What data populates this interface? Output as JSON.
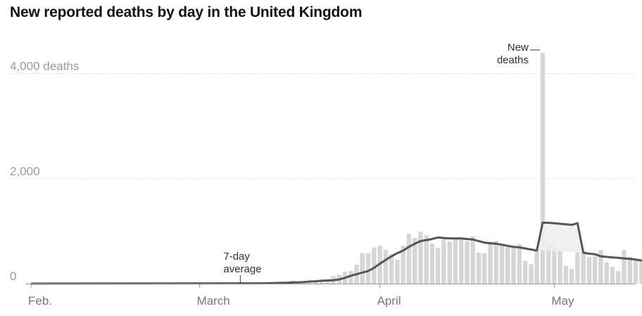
{
  "title": "New reported deaths by day in the United Kingdom",
  "chart_data": {
    "type": "bar",
    "title": "New reported deaths by day in the United Kingdom",
    "xlabel": "",
    "ylabel": "",
    "ylim": [
      0,
      4500
    ],
    "y_ticks": [
      {
        "value": 0,
        "label": "0"
      },
      {
        "value": 2000,
        "label": "2,000"
      },
      {
        "value": 4000,
        "label": "4,000 deaths"
      }
    ],
    "x_ticks": [
      {
        "date": "2020-02-01",
        "label": "Feb."
      },
      {
        "date": "2020-03-01",
        "label": "March"
      },
      {
        "date": "2020-04-01",
        "label": "April"
      },
      {
        "date": "2020-05-01",
        "label": "May"
      }
    ],
    "grid": true,
    "x_dates": [
      "2020-03-11",
      "2020-03-12",
      "2020-03-13",
      "2020-03-14",
      "2020-03-15",
      "2020-03-16",
      "2020-03-17",
      "2020-03-18",
      "2020-03-19",
      "2020-03-20",
      "2020-03-21",
      "2020-03-22",
      "2020-03-23",
      "2020-03-24",
      "2020-03-25",
      "2020-03-26",
      "2020-03-27",
      "2020-03-28",
      "2020-03-29",
      "2020-03-30",
      "2020-03-31",
      "2020-04-01",
      "2020-04-02",
      "2020-04-03",
      "2020-04-04",
      "2020-04-05",
      "2020-04-06",
      "2020-04-07",
      "2020-04-08",
      "2020-04-09",
      "2020-04-10",
      "2020-04-11",
      "2020-04-12",
      "2020-04-13",
      "2020-04-14",
      "2020-04-15",
      "2020-04-16",
      "2020-04-17",
      "2020-04-18",
      "2020-04-19",
      "2020-04-20",
      "2020-04-21",
      "2020-04-22",
      "2020-04-23",
      "2020-04-24",
      "2020-04-25",
      "2020-04-26",
      "2020-04-27",
      "2020-04-28",
      "2020-04-29",
      "2020-04-30",
      "2020-05-01",
      "2020-05-02",
      "2020-05-03",
      "2020-05-04",
      "2020-05-05",
      "2020-05-06",
      "2020-05-07",
      "2020-05-08",
      "2020-05-09",
      "2020-05-10",
      "2020-05-11",
      "2020-05-12",
      "2020-05-13",
      "2020-05-14",
      "2020-05-15",
      "2020-05-16",
      "2020-05-17"
    ],
    "series": [
      {
        "name": "New deaths",
        "values": [
          2,
          2,
          10,
          14,
          20,
          20,
          60,
          40,
          30,
          50,
          60,
          50,
          80,
          150,
          170,
          230,
          240,
          360,
          580,
          580,
          690,
          720,
          640,
          560,
          460,
          720,
          950,
          870,
          990,
          920,
          760,
          680,
          860,
          800,
          850,
          850,
          810,
          900,
          590,
          580,
          800,
          810,
          720,
          700,
          720,
          750,
          430,
          370,
          640,
          4400,
          760,
          810,
          640,
          340,
          280,
          720,
          620,
          510,
          520,
          640,
          410,
          320,
          240,
          640,
          510,
          460,
          470,
          440
        ]
      },
      {
        "name": "7-day average",
        "values": [
          5,
          6,
          8,
          12,
          15,
          18,
          22,
          25,
          30,
          40,
          45,
          55,
          60,
          65,
          80,
          110,
          150,
          180,
          210,
          240,
          300,
          380,
          450,
          520,
          580,
          630,
          700,
          760,
          810,
          830,
          850,
          880,
          870,
          860,
          860,
          860,
          850,
          840,
          810,
          780,
          770,
          760,
          740,
          720,
          700,
          690,
          670,
          650,
          630,
          1160,
          1160,
          1150,
          1140,
          1130,
          1120,
          1150,
          590,
          570,
          560,
          520,
          510,
          500,
          490,
          480,
          470,
          460,
          440,
          410
        ]
      }
    ],
    "annotations": [
      {
        "series": "New deaths",
        "label_lines": [
          "New",
          "deaths"
        ]
      },
      {
        "series": "7-day average",
        "label_lines": [
          "7-day",
          "average"
        ]
      }
    ]
  }
}
